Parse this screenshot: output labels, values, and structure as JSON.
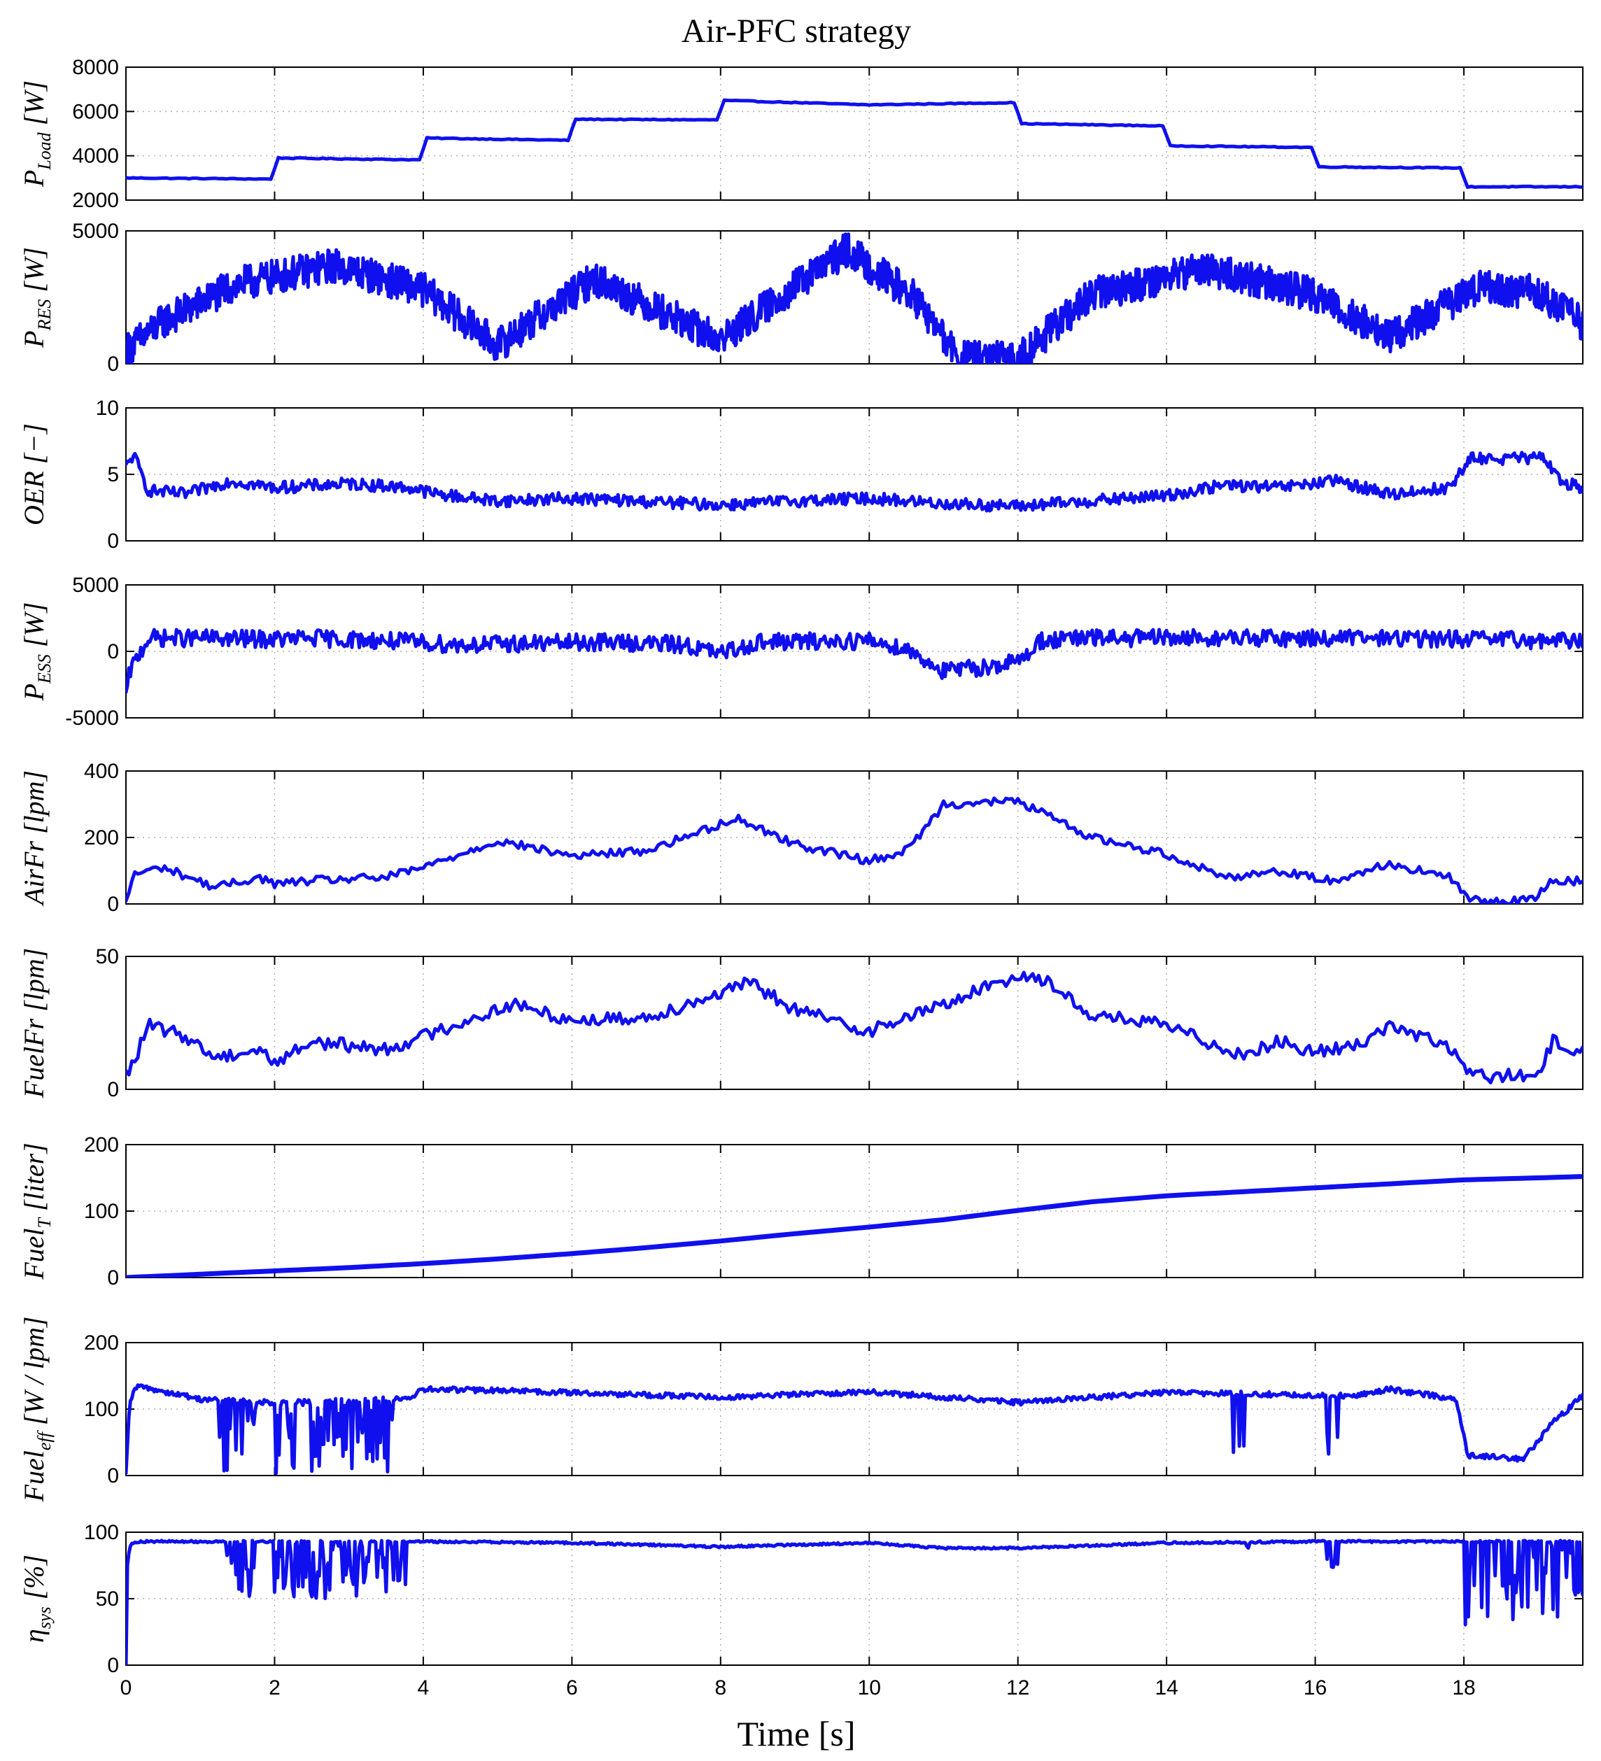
{
  "figure": {
    "title": "Air-PFC strategy",
    "xlabel": "Time [s]",
    "line_color": "#1010ee"
  },
  "chart_data": [
    {
      "type": "line",
      "ylabel_main": "P",
      "ylabel_sub": "Load",
      "ylabel_unit": " [W]",
      "xlim": [
        0,
        19.6
      ],
      "ylim": [
        2000,
        8000
      ],
      "yticks": [
        2000,
        4000,
        6000,
        8000
      ],
      "ytick_labels": [
        "2000",
        "4000",
        "6000",
        "8000"
      ],
      "grid": true,
      "series": [
        {
          "noise": 40,
          "step": 0.05,
          "x": [
            0,
            1.95,
            2.05,
            3.95,
            4.05,
            5.95,
            6.05,
            7.95,
            8.05,
            10.0,
            11.95,
            12.05,
            13.95,
            14.05,
            15.95,
            16.05,
            17.95,
            18.05,
            19.6
          ],
          "y": [
            3000,
            2950,
            3900,
            3820,
            4800,
            4700,
            5650,
            5620,
            6500,
            6300,
            6400,
            5450,
            5350,
            4450,
            4380,
            3500,
            3450,
            2600,
            2600
          ]
        }
      ]
    },
    {
      "type": "line",
      "ylabel_main": "P",
      "ylabel_sub": "RES",
      "ylabel_unit": " [W]",
      "xlim": [
        0,
        19.6
      ],
      "ylim": [
        0,
        5000
      ],
      "yticks": [
        0,
        5000
      ],
      "ytick_labels": [
        "0",
        "5000"
      ],
      "grid": true,
      "series": [
        {
          "noise": 1300,
          "step": 0.01,
          "x": [
            0,
            0.5,
            1.5,
            2.8,
            4.0,
            5.0,
            6.3,
            8.0,
            9.7,
            10.6,
            11.2,
            12.0,
            13.0,
            14.5,
            16.0,
            17.0,
            18.2,
            19.0,
            19.6
          ],
          "y": [
            500,
            1600,
            3000,
            3700,
            2800,
            700,
            3200,
            900,
            4300,
            2500,
            200,
            200,
            2600,
            3600,
            2600,
            1000,
            2900,
            2700,
            1500
          ]
        }
      ]
    },
    {
      "type": "line",
      "ylabel_main": "OER",
      "ylabel_sub": "",
      "ylabel_unit": " [−]",
      "xlim": [
        0,
        19.6
      ],
      "ylim": [
        0,
        10
      ],
      "yticks": [
        0,
        5,
        10
      ],
      "ytick_labels": [
        "0",
        "5",
        "10"
      ],
      "grid": true,
      "series": [
        {
          "noise": 0.9,
          "step": 0.02,
          "x": [
            0,
            0.1,
            0.3,
            0.8,
            1.4,
            2.0,
            3.0,
            3.8,
            4.2,
            5.0,
            6.0,
            8.0,
            9.0,
            10.0,
            11.0,
            12.0,
            13.0,
            14.0,
            14.8,
            15.5,
            16.3,
            17.0,
            17.8,
            18.1,
            19.1,
            19.3,
            19.6
          ],
          "y": [
            5.5,
            6.5,
            3.8,
            3.5,
            4.5,
            4.0,
            4.3,
            4.0,
            3.5,
            3.0,
            3.2,
            2.7,
            3.0,
            3.2,
            2.8,
            2.6,
            3.0,
            3.4,
            4.2,
            4.0,
            4.5,
            3.5,
            4.0,
            6.2,
            6.2,
            4.5,
            4.0
          ]
        }
      ]
    },
    {
      "type": "line",
      "ylabel_main": "P",
      "ylabel_sub": "ESS",
      "ylabel_unit": " [W]",
      "xlim": [
        0,
        19.6
      ],
      "ylim": [
        -5000,
        5000
      ],
      "yticks": [
        -5000,
        0,
        5000
      ],
      "ytick_labels": [
        "-5000",
        "0",
        "5000"
      ],
      "grid": true,
      "series": [
        {
          "noise": 1300,
          "step": 0.02,
          "x": [
            0,
            0.05,
            0.3,
            1.0,
            2.0,
            2.5,
            3.5,
            4.5,
            5.5,
            6.5,
            7.5,
            8.0,
            8.5,
            10.0,
            10.5,
            11.0,
            11.5,
            12.0,
            12.3,
            13.0,
            15.0,
            17.0,
            19.6
          ],
          "y": [
            -3500,
            -1500,
            1000,
            1000,
            900,
            1000,
            800,
            500,
            600,
            700,
            500,
            -200,
            700,
            800,
            200,
            -1500,
            -1200,
            -800,
            800,
            1000,
            1000,
            1000,
            800
          ]
        }
      ]
    },
    {
      "type": "line",
      "ylabel_main": "AirFr",
      "ylabel_sub": "",
      "ylabel_unit": " [lpm]",
      "xlim": [
        0,
        19.6
      ],
      "ylim": [
        0,
        400
      ],
      "yticks": [
        0,
        200,
        400
      ],
      "ytick_labels": [
        "0",
        "200",
        "400"
      ],
      "grid": true,
      "series": [
        {
          "noise": 25,
          "step": 0.04,
          "x": [
            0,
            0.1,
            0.5,
            1.2,
            1.8,
            2.0,
            2.5,
            3.5,
            4.0,
            5.0,
            6.0,
            7.0,
            8.0,
            8.2,
            9.0,
            10.0,
            10.5,
            10.9,
            11.0,
            12.0,
            13.0,
            14.0,
            14.8,
            15.5,
            16.2,
            17.0,
            17.8,
            18.1,
            18.9,
            19.2,
            19.6
          ],
          "y": [
            0,
            90,
            110,
            50,
            80,
            60,
            70,
            80,
            110,
            190,
            145,
            160,
            240,
            260,
            180,
            130,
            160,
            270,
            300,
            310,
            200,
            150,
            80,
            100,
            70,
            120,
            80,
            10,
            10,
            70,
            70
          ]
        }
      ]
    },
    {
      "type": "line",
      "ylabel_main": "FuelFr",
      "ylabel_sub": "",
      "ylabel_unit": " [lpm]",
      "xlim": [
        0,
        19.6
      ],
      "ylim": [
        0,
        50
      ],
      "yticks": [
        0,
        50
      ],
      "ytick_labels": [
        "0",
        "50"
      ],
      "grid": true,
      "series": [
        {
          "noise": 5,
          "step": 0.04,
          "x": [
            0,
            0.1,
            0.3,
            0.8,
            1.2,
            1.8,
            2.0,
            2.5,
            3.5,
            4.0,
            5.2,
            6.0,
            7.0,
            8.4,
            9.0,
            10.0,
            11.0,
            12.0,
            12.3,
            13.0,
            14.0,
            15.0,
            15.5,
            16.0,
            16.5,
            17.0,
            17.8,
            18.1,
            19.0,
            19.2,
            19.6
          ],
          "y": [
            5,
            10,
            24,
            20,
            12,
            15,
            10,
            18,
            15,
            20,
            32,
            26,
            27,
            40,
            30,
            22,
            32,
            43,
            42,
            28,
            24,
            13,
            18,
            14,
            16,
            24,
            16,
            5,
            5,
            18,
            14
          ]
        }
      ]
    },
    {
      "type": "line",
      "ylabel_main": "Fuel",
      "ylabel_sub": "T",
      "ylabel_unit": " [liter]",
      "xlim": [
        0,
        19.6
      ],
      "ylim": [
        0,
        200
      ],
      "yticks": [
        0,
        100,
        200
      ],
      "ytick_labels": [
        "0",
        "100",
        "200"
      ],
      "grid": true,
      "series": [
        {
          "noise": 0,
          "step": 0.1,
          "x": [
            0,
            1,
            2,
            3,
            4,
            5,
            6,
            7,
            8,
            9,
            10,
            11,
            12,
            13,
            14,
            15,
            16,
            17,
            18,
            19,
            19.6
          ],
          "y": [
            0,
            5,
            10,
            15,
            21,
            28,
            36,
            45,
            55,
            66,
            76,
            87,
            101,
            114,
            123,
            129,
            135,
            141,
            147,
            150,
            152
          ]
        }
      ]
    },
    {
      "type": "line",
      "ylabel_main": "Fuel",
      "ylabel_sub": "eff",
      "ylabel_unit": " [W / lpm]",
      "xlim": [
        0,
        19.6
      ],
      "ylim": [
        0,
        200
      ],
      "yticks": [
        0,
        100,
        200
      ],
      "ytick_labels": [
        "0",
        "100",
        "200"
      ],
      "grid": true,
      "series": [
        {
          "noise": 8,
          "step": 0.02,
          "dips": [
            [
              1.25,
              1.75,
              0
            ],
            [
              2.0,
              3.6,
              0
            ],
            [
              3.9,
              3.9,
              0
            ],
            [
              14.85,
              15.05,
              30
            ],
            [
              16.1,
              16.3,
              20
            ]
          ],
          "x": [
            0,
            0.05,
            0.15,
            1.0,
            2.0,
            3.8,
            4.0,
            5.0,
            8.0,
            10.0,
            12.0,
            14.0,
            16.5,
            17.0,
            17.9,
            18.05,
            18.8,
            19.2,
            19.6
          ],
          "y": [
            0,
            110,
            135,
            115,
            110,
            115,
            130,
            128,
            118,
            126,
            110,
            125,
            120,
            130,
            115,
            30,
            25,
            80,
            120
          ]
        }
      ]
    },
    {
      "type": "line",
      "ylabel_main": "η",
      "ylabel_sub": "sys",
      "ylabel_unit": " [%]",
      "xlim": [
        0,
        19.6
      ],
      "ylim": [
        0,
        100
      ],
      "yticks": [
        0,
        50,
        100
      ],
      "ytick_labels": [
        "0",
        "50",
        "100"
      ],
      "grid": true,
      "series": [
        {
          "noise": 1.5,
          "step": 0.02,
          "dips": [
            [
              1.25,
              1.75,
              50
            ],
            [
              2.0,
              3.6,
              50
            ],
            [
              3.6,
              3.8,
              60
            ],
            [
              15.0,
              15.1,
              85
            ],
            [
              16.15,
              16.3,
              70
            ],
            [
              18.0,
              19.6,
              30
            ]
          ],
          "x": [
            0,
            0.01,
            0.05,
            0.15,
            2.0,
            4.0,
            6.0,
            8.0,
            10.0,
            11.0,
            12.0,
            14.0,
            16.0,
            18.0,
            19.6
          ],
          "y": [
            0,
            70,
            90,
            93,
            93,
            93,
            92,
            89,
            92,
            88,
            88,
            92,
            93,
            93,
            93
          ]
        }
      ]
    }
  ],
  "xaxis": {
    "ticks": [
      0,
      2,
      4,
      6,
      8,
      10,
      12,
      14,
      16,
      18
    ],
    "tick_labels": [
      "0",
      "2",
      "4",
      "6",
      "8",
      "10",
      "12",
      "14",
      "16",
      "18"
    ]
  }
}
